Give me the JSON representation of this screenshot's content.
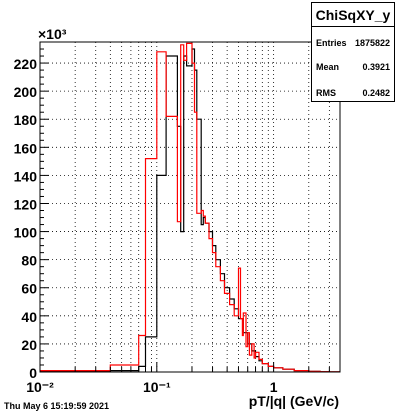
{
  "stats": {
    "title": "ChiSqXY_y",
    "rows": [
      {
        "label": "Entries",
        "value": "1875822"
      },
      {
        "label": "Mean",
        "value": "0.3921"
      },
      {
        "label": "RMS",
        "value": "0.2482"
      }
    ]
  },
  "timestamp": "Thu May  6 15:19:59 2021",
  "chart_data": {
    "type": "histogram",
    "title": "",
    "xlabel": "pT/|q| (GeV/c)",
    "ylabel": "",
    "y_multiplier": "×10³",
    "x_log": true,
    "xlim": [
      0.01,
      3.7
    ],
    "ylim": [
      0,
      235
    ],
    "grid": true,
    "x_tick_labels": [
      {
        "value": 0.01,
        "label": "10⁻²"
      },
      {
        "value": 0.1,
        "label": "10⁻¹"
      },
      {
        "value": 1,
        "label": "1"
      }
    ],
    "y_ticks": [
      0,
      20,
      40,
      60,
      80,
      100,
      120,
      140,
      160,
      180,
      200,
      220
    ],
    "series": [
      {
        "color": "#000000",
        "x": [
          0.01,
          0.04,
          0.07,
          0.08,
          0.1,
          0.12,
          0.15,
          0.16,
          0.17,
          0.18,
          0.2,
          0.21,
          0.22,
          0.24,
          0.25,
          0.26,
          0.28,
          0.3,
          0.32,
          0.35,
          0.38,
          0.42,
          0.46,
          0.5,
          0.55,
          0.6,
          0.65,
          0.7,
          0.75,
          0.8,
          0.9,
          1.0,
          1.2,
          1.5,
          2.0,
          2.5,
          3.0,
          3.7
        ],
        "y": [
          0.5,
          1,
          4,
          25,
          140,
          225,
          175,
          100,
          225,
          218,
          230,
          215,
          180,
          105,
          110,
          106,
          100,
          90,
          80,
          70,
          60,
          52,
          45,
          38,
          28,
          20,
          15,
          11,
          8,
          6,
          4,
          3,
          2,
          1,
          0.5,
          0.2,
          0.05
        ]
      },
      {
        "color": "#ff0000",
        "x": [
          0.01,
          0.04,
          0.07,
          0.08,
          0.1,
          0.12,
          0.15,
          0.16,
          0.17,
          0.18,
          0.2,
          0.21,
          0.22,
          0.24,
          0.25,
          0.26,
          0.28,
          0.3,
          0.32,
          0.35,
          0.38,
          0.42,
          0.46,
          0.5,
          0.52,
          0.54,
          0.55,
          0.58,
          0.6,
          0.62,
          0.65,
          0.68,
          0.7,
          0.75,
          0.8,
          0.9,
          1.0,
          1.2,
          1.5,
          2.0,
          2.5,
          3.0,
          3.7
        ],
        "y": [
          1,
          5,
          26,
          152,
          228,
          182,
          107,
          233,
          222,
          234,
          220,
          185,
          113,
          115,
          111,
          106,
          95,
          85,
          75,
          65,
          56,
          48,
          40,
          74,
          38,
          26,
          42,
          18,
          28,
          12,
          20,
          10,
          14,
          9,
          6,
          4,
          3,
          2,
          1,
          0.5,
          0.2,
          0.05
        ]
      }
    ]
  }
}
